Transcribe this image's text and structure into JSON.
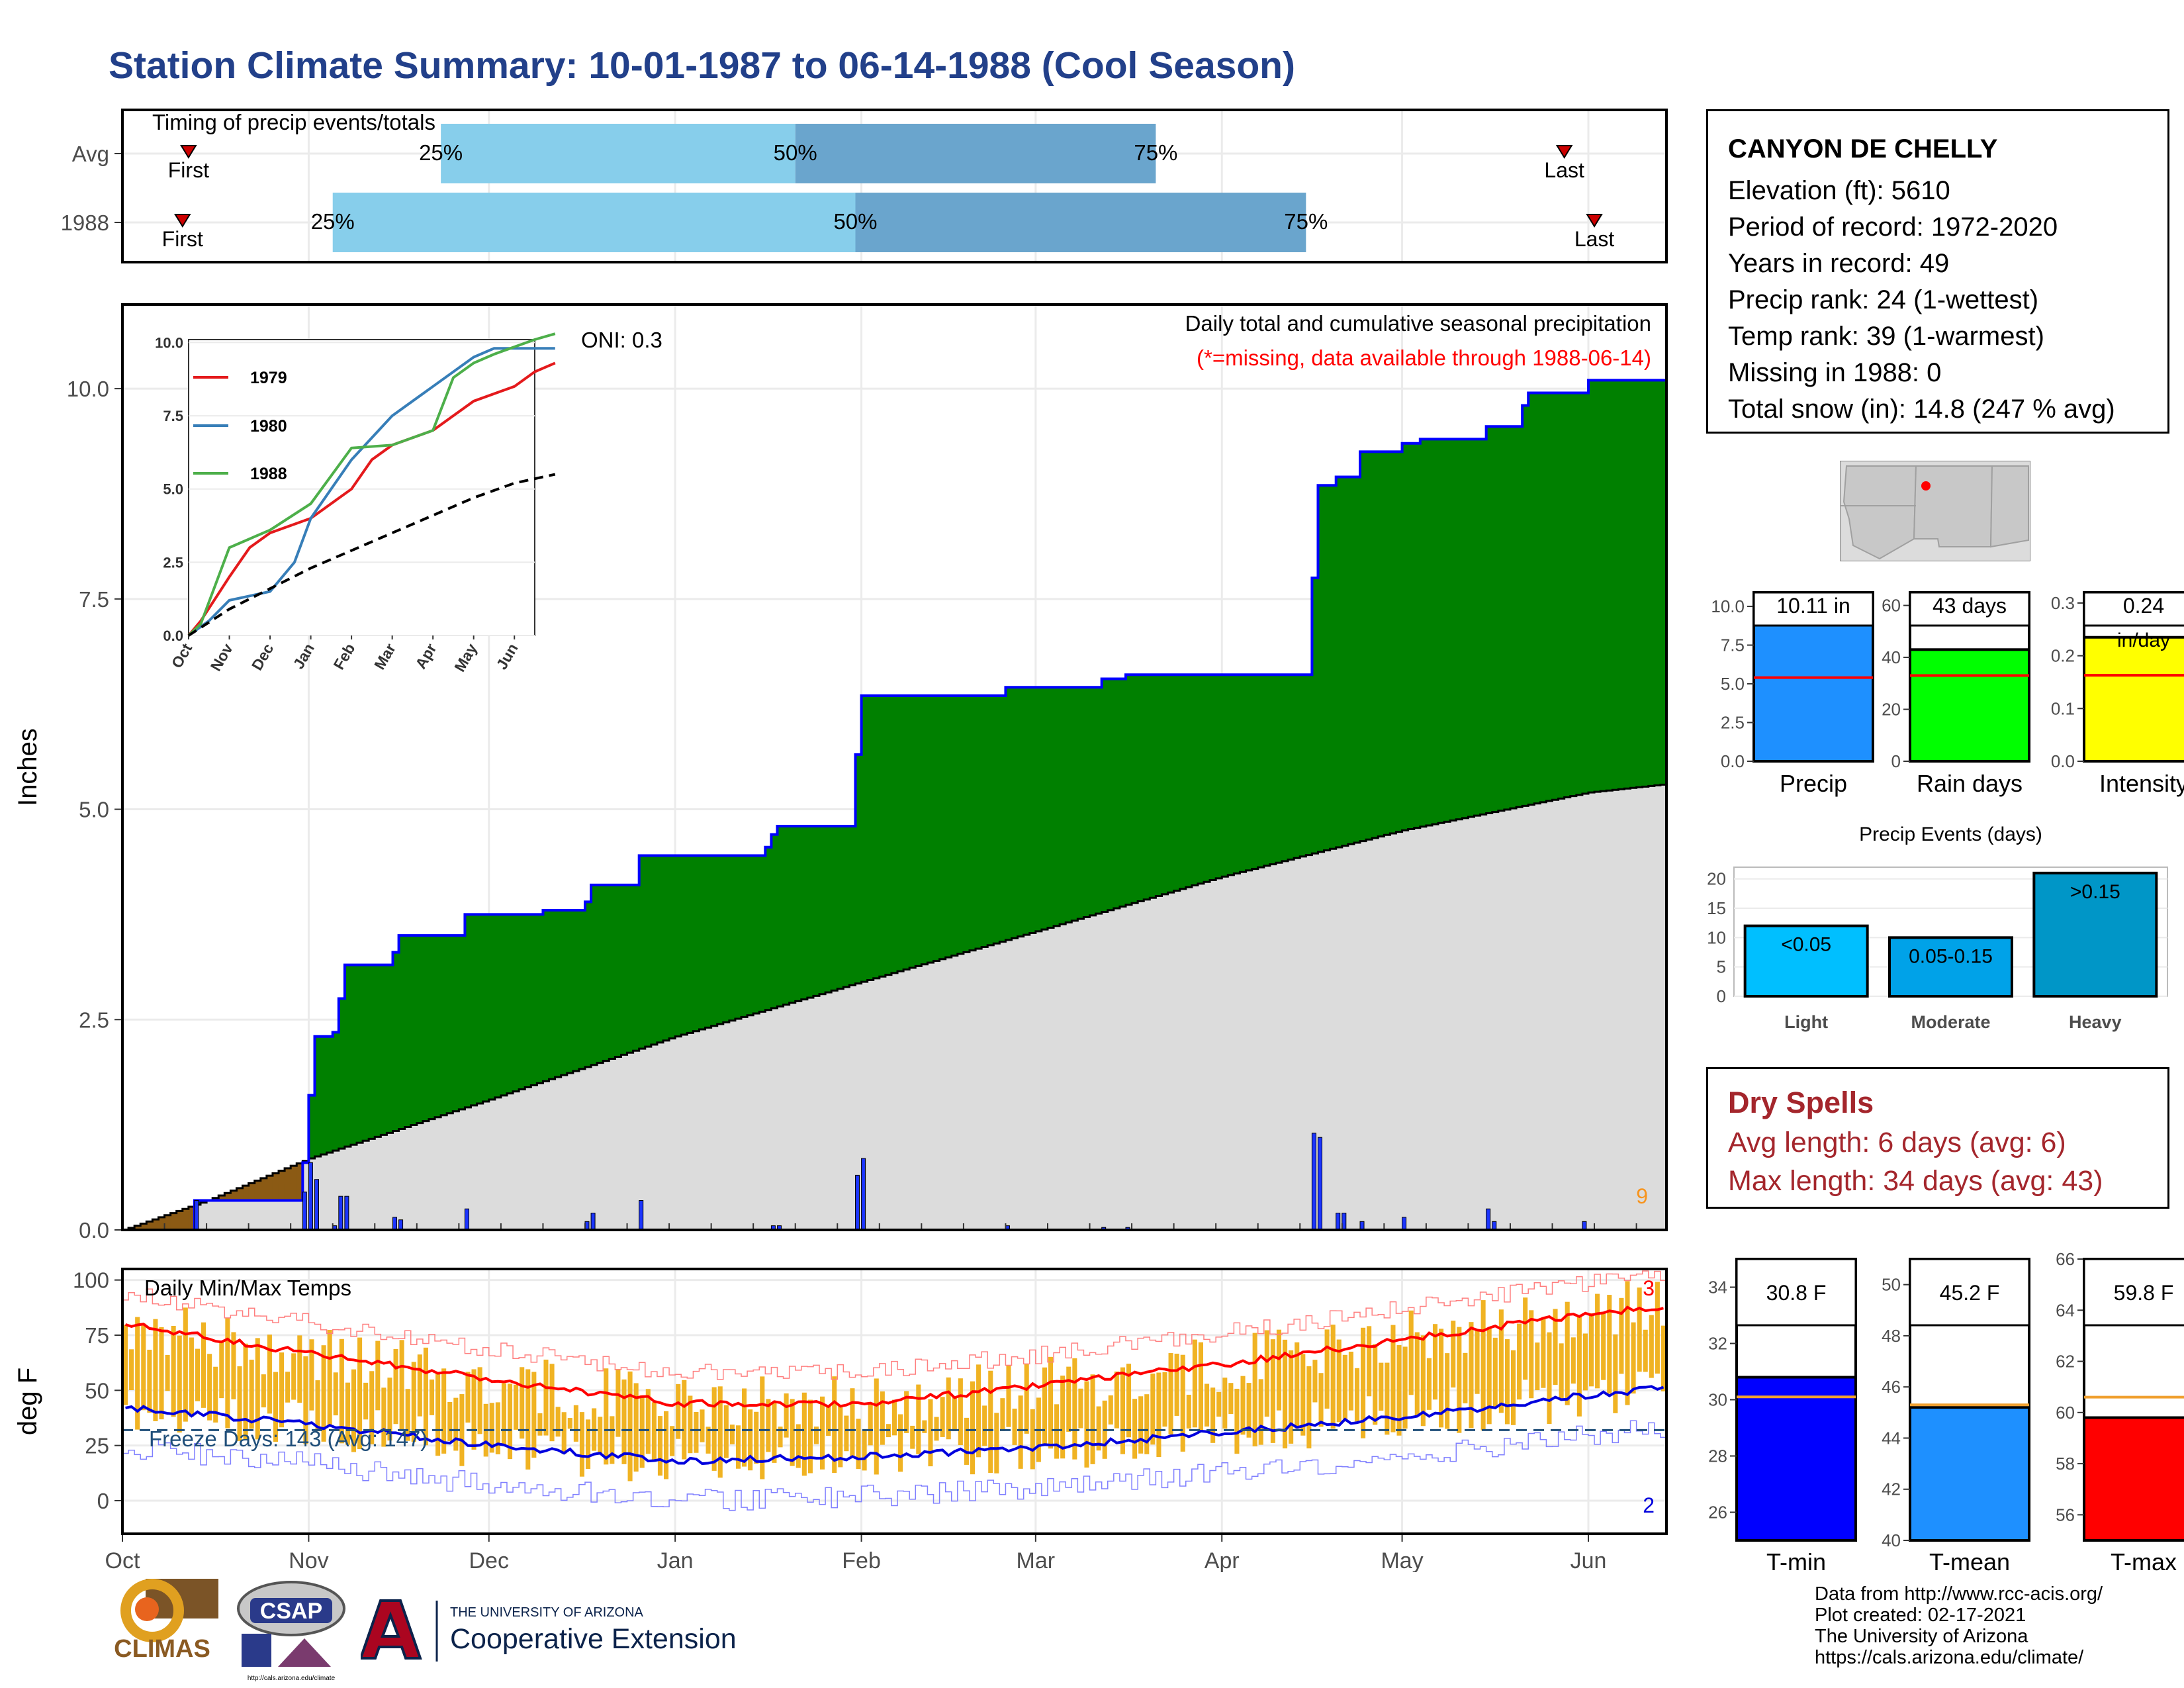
{
  "page": {
    "title": "Station Climate Summary: 10-01-1987 to 06-14-1988 (Cool Season)"
  },
  "colors": {
    "title": "#22408a",
    "green_fill": "#008000",
    "normal_fill": "#dcdcdc",
    "deficit_fill": "#8b5a14",
    "bar_blue": "#1c35ff",
    "temp_bar": "#f0b323",
    "tmax_line": "#ff0000",
    "tmin_line": "#0000dd",
    "light_blue": "#87ceeb",
    "mid_blue": "#6aa5cd",
    "dry_text": "#a4262c"
  },
  "station": {
    "name": "CANYON DE CHELLY",
    "lines": [
      "Elevation (ft): 5610",
      "Period of record: 1972-2020",
      "Years in record: 49",
      "Precip rank: 24 (1-wettest)",
      "Temp rank: 39 (1-warmest)",
      "Missing in 1988: 0",
      "Total snow (in): 14.8 (247 % avg)"
    ]
  },
  "dry_spells": {
    "title": "Dry Spells",
    "avg_length": "Avg length: 6 days (avg: 6)",
    "max_length": "Max length: 34 days (avg: 43)"
  },
  "credits": [
    "Data from http://www.rcc-acis.org/",
    "Plot created: 02-17-2021",
    "The University of Arizona",
    "https://cals.arizona.edu/climate/"
  ],
  "logos": {
    "climas": "CLIMAS",
    "csap": "CSAP",
    "csap_url": "http://cals.arizona.edu/climate",
    "ua_small": "THE UNIVERSITY OF ARIZONA",
    "ua_big": "Cooperative Extension"
  },
  "chart_data": [
    {
      "id": "timing",
      "type": "bar",
      "title": "Timing of precip events/totals",
      "categories": [
        "Avg",
        "1988"
      ],
      "rows": [
        {
          "label": "Avg",
          "first": "1987-10-12",
          "p25": "1987-11-23",
          "p50": "1988-01-21",
          "p75": "1988-03-21",
          "last": "1988-05-28"
        },
        {
          "label": "1988",
          "first": "1987-10-11",
          "p25": "1987-11-05",
          "p50": "1988-01-31",
          "p75": "1988-04-15",
          "last": "1988-06-02"
        }
      ],
      "marker_labels": {
        "first": "First",
        "last": "Last",
        "p25": "25%",
        "p50": "50%",
        "p75": "75%"
      }
    },
    {
      "id": "precip",
      "type": "area",
      "title": "Daily total and cumulative seasonal precipitation",
      "subtitle": "(*=missing, data available through 1988-06-14)",
      "oni": "ONI: 0.3",
      "ylabel": "Inches",
      "ylim": [
        0,
        11
      ],
      "yticks": [
        "0.0",
        "2.5",
        "5.0",
        "7.5",
        "10.0"
      ],
      "xticks": [
        "Oct",
        "Nov",
        "Dec",
        "Jan",
        "Feb",
        "Mar",
        "Apr",
        "May",
        "Jun"
      ],
      "snow_days_label": "9",
      "cumulative_1988": [
        [
          "1987-10-01",
          0.0
        ],
        [
          "1987-10-12",
          0.0
        ],
        [
          "1987-10-13",
          0.35
        ],
        [
          "1987-10-30",
          0.35
        ],
        [
          "1987-10-31",
          0.8
        ],
        [
          "1987-11-01",
          1.6
        ],
        [
          "1987-11-02",
          2.3
        ],
        [
          "1987-11-05",
          2.35
        ],
        [
          "1987-11-06",
          2.75
        ],
        [
          "1987-11-07",
          3.15
        ],
        [
          "1987-11-15",
          3.3
        ],
        [
          "1987-11-16",
          3.5
        ],
        [
          "1987-11-27",
          3.75
        ],
        [
          "1987-12-10",
          3.8
        ],
        [
          "1987-12-17",
          3.9
        ],
        [
          "1987-12-18",
          4.1
        ],
        [
          "1987-12-26",
          4.45
        ],
        [
          "1988-01-16",
          4.55
        ],
        [
          "1988-01-17",
          4.7
        ],
        [
          "1988-01-18",
          4.8
        ],
        [
          "1988-01-31",
          5.65
        ],
        [
          "1988-02-01",
          6.35
        ],
        [
          "1988-02-25",
          6.45
        ],
        [
          "1988-03-12",
          6.55
        ],
        [
          "1988-03-16",
          6.6
        ],
        [
          "1988-04-15",
          6.6
        ],
        [
          "1988-04-16",
          7.75
        ],
        [
          "1988-04-17",
          8.85
        ],
        [
          "1988-04-20",
          8.95
        ],
        [
          "1988-04-24",
          9.25
        ],
        [
          "1988-05-01",
          9.35
        ],
        [
          "1988-05-04",
          9.4
        ],
        [
          "1988-05-15",
          9.55
        ],
        [
          "1988-05-21",
          9.8
        ],
        [
          "1988-05-22",
          9.95
        ],
        [
          "1988-06-01",
          10.1
        ],
        [
          "1988-06-14",
          10.1
        ]
      ],
      "normal_cumulative": [
        [
          "1987-10-01",
          0.0
        ],
        [
          "1987-10-15",
          0.35
        ],
        [
          "1987-11-01",
          0.85
        ],
        [
          "1987-12-01",
          1.55
        ],
        [
          "1988-01-01",
          2.3
        ],
        [
          "1988-02-01",
          2.95
        ],
        [
          "1988-03-01",
          3.55
        ],
        [
          "1988-04-01",
          4.2
        ],
        [
          "1988-05-01",
          4.75
        ],
        [
          "1988-06-01",
          5.2
        ],
        [
          "1988-06-14",
          5.3
        ]
      ],
      "daily_precip": [
        [
          "1987-10-13",
          0.35
        ],
        [
          "1987-10-31",
          0.45
        ],
        [
          "1987-11-01",
          0.8
        ],
        [
          "1987-11-02",
          0.6
        ],
        [
          "1987-11-05",
          0.05
        ],
        [
          "1987-11-06",
          0.4
        ],
        [
          "1987-11-07",
          0.4
        ],
        [
          "1987-11-15",
          0.15
        ],
        [
          "1987-11-16",
          0.12
        ],
        [
          "1987-11-27",
          0.25
        ],
        [
          "1987-12-17",
          0.1
        ],
        [
          "1987-12-18",
          0.2
        ],
        [
          "1987-12-26",
          0.35
        ],
        [
          "1988-01-17",
          0.05
        ],
        [
          "1988-01-18",
          0.05
        ],
        [
          "1988-01-31",
          0.65
        ],
        [
          "1988-02-01",
          0.85
        ],
        [
          "1988-02-25",
          0.05
        ],
        [
          "1988-03-12",
          0.03
        ],
        [
          "1988-03-16",
          0.03
        ],
        [
          "1988-04-16",
          1.15
        ],
        [
          "1988-04-17",
          1.1
        ],
        [
          "1988-04-20",
          0.2
        ],
        [
          "1988-04-21",
          0.2
        ],
        [
          "1988-04-24",
          0.1
        ],
        [
          "1988-05-01",
          0.15
        ],
        [
          "1988-05-15",
          0.25
        ],
        [
          "1988-05-16",
          0.1
        ],
        [
          "1988-05-31",
          0.1
        ]
      ]
    },
    {
      "id": "inset",
      "type": "line",
      "ylim": [
        0,
        10
      ],
      "yticks": [
        "0.0",
        "2.5",
        "5.0",
        "7.5",
        "10.0"
      ],
      "xticks": [
        "Oct",
        "Nov",
        "Dec",
        "Jan",
        "Feb",
        "Mar",
        "Apr",
        "May",
        "Jun"
      ],
      "series": [
        {
          "name": "1979",
          "color": "#e41a1c",
          "values": [
            [
              0,
              0
            ],
            [
              0.3,
              0.5
            ],
            [
              1,
              2
            ],
            [
              1.5,
              3
            ],
            [
              2,
              3.5
            ],
            [
              3,
              4
            ],
            [
              4,
              5
            ],
            [
              4.5,
              6
            ],
            [
              5,
              6.5
            ],
            [
              6,
              7
            ],
            [
              7,
              8
            ],
            [
              8,
              8.5
            ],
            [
              8.5,
              9
            ],
            [
              9,
              9.3
            ]
          ]
        },
        {
          "name": "1980",
          "color": "#377eb8",
          "values": [
            [
              0,
              0
            ],
            [
              0.5,
              0.5
            ],
            [
              1,
              1.2
            ],
            [
              2,
              1.5
            ],
            [
              2.6,
              2.5
            ],
            [
              3,
              4
            ],
            [
              3.5,
              5
            ],
            [
              4,
              6
            ],
            [
              5,
              7.5
            ],
            [
              6,
              8.5
            ],
            [
              7,
              9.5
            ],
            [
              7.5,
              9.8
            ],
            [
              9,
              9.8
            ]
          ]
        },
        {
          "name": "1988",
          "color": "#4daf4a",
          "values": [
            [
              0,
              0
            ],
            [
              0.3,
              0.4
            ],
            [
              1,
              3
            ],
            [
              2,
              3.6
            ],
            [
              3,
              4.5
            ],
            [
              4,
              6.4
            ],
            [
              5,
              6.5
            ],
            [
              6,
              7
            ],
            [
              6.5,
              8.8
            ],
            [
              7,
              9.3
            ],
            [
              7.5,
              9.6
            ],
            [
              8.5,
              10.1
            ],
            [
              9,
              10.3
            ]
          ]
        },
        {
          "name": "",
          "color": "#000000",
          "values": [
            [
              0,
              0
            ],
            [
              1,
              0.9
            ],
            [
              2,
              1.6
            ],
            [
              3,
              2.3
            ],
            [
              4,
              2.9
            ],
            [
              5,
              3.5
            ],
            [
              6,
              4.1
            ],
            [
              7,
              4.7
            ],
            [
              8,
              5.2
            ],
            [
              9,
              5.5
            ]
          ]
        }
      ]
    },
    {
      "id": "temps",
      "type": "bar",
      "title": "Daily Min/Max Temps",
      "ylabel": "deg F",
      "ylim": [
        -15,
        105
      ],
      "yticks": [
        "0",
        "25",
        "50",
        "75",
        "100"
      ],
      "xticks": [
        "Oct",
        "Nov",
        "Dec",
        "Jan",
        "Feb",
        "Mar",
        "Apr",
        "May",
        "Jun"
      ],
      "freeze_label": "Freeze Days: 143 (Avg: 147)",
      "freeze_line": 32,
      "record_high_count": "3",
      "record_low_count": "2",
      "avg_max": [
        [
          0,
          80
        ],
        [
          30,
          67
        ],
        [
          61,
          55
        ],
        [
          92,
          44
        ],
        [
          123,
          44
        ],
        [
          152,
          52
        ],
        [
          183,
          62
        ],
        [
          213,
          73
        ],
        [
          244,
          85
        ],
        [
          256,
          88
        ]
      ],
      "avg_min": [
        [
          0,
          42
        ],
        [
          30,
          35
        ],
        [
          61,
          25
        ],
        [
          92,
          18
        ],
        [
          123,
          20
        ],
        [
          152,
          24
        ],
        [
          183,
          31
        ],
        [
          213,
          38
        ],
        [
          244,
          48
        ],
        [
          256,
          51
        ]
      ]
    },
    {
      "id": "precip-gauges",
      "type": "bar",
      "gauges": [
        {
          "label": "Precip",
          "value": 10.11,
          "text": "10.11 in",
          "avg": 5.4,
          "ylim": [
            0,
            10.9
          ],
          "yticks": [
            "0.0",
            "2.5",
            "5.0",
            "7.5",
            "10.0"
          ],
          "tickvals": [
            0,
            2.5,
            5,
            7.5,
            10
          ],
          "color": "#1e90ff"
        },
        {
          "label": "Rain days",
          "value": 43,
          "text": "43 days",
          "avg": 33,
          "ylim": [
            0,
            65
          ],
          "yticks": [
            "0",
            "20",
            "40",
            "60"
          ],
          "tickvals": [
            0,
            20,
            40,
            60
          ],
          "color": "#00ff00"
        },
        {
          "label": "Intensity",
          "value": 0.235,
          "text": "0.24",
          "text2": "in/day",
          "avg": 0.163,
          "ylim": [
            0,
            0.32
          ],
          "yticks": [
            "0.0",
            "0.1",
            "0.2",
            "0.3"
          ],
          "tickvals": [
            0,
            0.1,
            0.2,
            0.3
          ],
          "color": "#ffff00"
        }
      ]
    },
    {
      "id": "precip-events",
      "type": "bar",
      "title": "Precip Events (days)",
      "categories": [
        "Light",
        "Moderate",
        "Heavy"
      ],
      "labels": [
        "<0.05",
        "0.05-0.15",
        ">0.15"
      ],
      "values": [
        12,
        10,
        21
      ],
      "ylim": [
        0,
        22
      ],
      "yticks": [
        "0",
        "5",
        "10",
        "15",
        "20"
      ],
      "colors": [
        "#00bfff",
        "#00a2e8",
        "#0096c7"
      ]
    },
    {
      "id": "temp-gauges",
      "type": "bar",
      "gauges": [
        {
          "label": "T-min",
          "value": 30.8,
          "text": "30.8 F",
          "avg": 30.1,
          "ylim": [
            25,
            35
          ],
          "yticks": [
            "26",
            "28",
            "30",
            "32",
            "34"
          ],
          "tickvals": [
            26,
            28,
            30,
            32,
            34
          ],
          "color": "#0000ff"
        },
        {
          "label": "T-mean",
          "value": 45.2,
          "text": "45.2 F",
          "avg": 45.3,
          "ylim": [
            40,
            51
          ],
          "yticks": [
            "40",
            "42",
            "44",
            "46",
            "48",
            "50"
          ],
          "tickvals": [
            40,
            42,
            44,
            46,
            48,
            50
          ],
          "color": "#1e90ff"
        },
        {
          "label": "T-max",
          "value": 59.8,
          "text": "59.8 F",
          "avg": 60.6,
          "ylim": [
            55,
            66
          ],
          "yticks": [
            "56",
            "58",
            "60",
            "62",
            "64",
            "66"
          ],
          "tickvals": [
            56,
            58,
            60,
            62,
            64,
            66
          ],
          "color": "#ff0000"
        }
      ]
    }
  ]
}
